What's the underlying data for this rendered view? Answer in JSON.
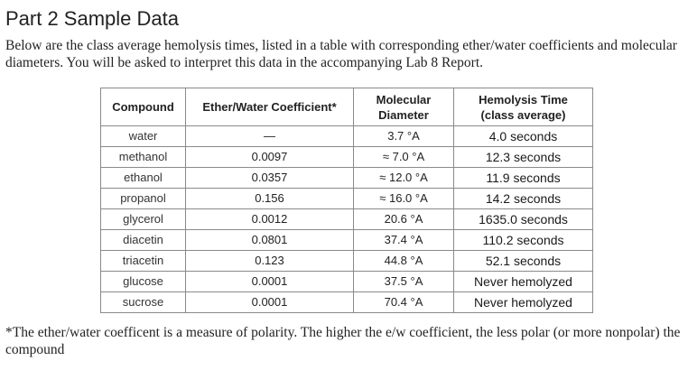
{
  "page": {
    "heading": "Part 2 Sample Data",
    "intro": "Below are the class average hemolysis times, listed in a table with corresponding ether/water coefficients and molecular diameters. You will be asked to interpret this data in the accompanying Lab 8 Report.",
    "footnote": "*The ether/water coefficent is a measure of polarity. The higher the e/w coefficient, the less polar (or more nonpolar) the compound"
  },
  "table": {
    "headers": {
      "compound": "Compound",
      "coefficient": "Ether/Water Coefficient*",
      "diameter_line1": "Molecular",
      "diameter_line2": "Diameter",
      "time_line1": "Hemolysis Time",
      "time_line2": "(class average)"
    },
    "rows": [
      {
        "compound": "water",
        "coefficient": "—",
        "diameter": "3.7 °A",
        "time": "4.0 seconds"
      },
      {
        "compound": "methanol",
        "coefficient": "0.0097",
        "diameter": "≈ 7.0 °A",
        "time": "12.3 seconds"
      },
      {
        "compound": "ethanol",
        "coefficient": "0.0357",
        "diameter": "≈ 12.0 °A",
        "time": "11.9 seconds"
      },
      {
        "compound": "propanol",
        "coefficient": "0.156",
        "diameter": "≈ 16.0 °A",
        "time": "14.2 seconds"
      },
      {
        "compound": "glycerol",
        "coefficient": "0.0012",
        "diameter": "20.6 °A",
        "time": "1635.0 seconds"
      },
      {
        "compound": "diacetin",
        "coefficient": "0.0801",
        "diameter": "37.4 °A",
        "time": "110.2 seconds"
      },
      {
        "compound": "triacetin",
        "coefficient": "0.123",
        "diameter": "44.8 °A",
        "time": "52.1 seconds"
      },
      {
        "compound": "glucose",
        "coefficient": "0.0001",
        "diameter": "37.5 °A",
        "time": "Never hemolyzed"
      },
      {
        "compound": "sucrose",
        "coefficient": "0.0001",
        "diameter": "70.4 °A",
        "time": "Never hemolyzed"
      }
    ]
  }
}
